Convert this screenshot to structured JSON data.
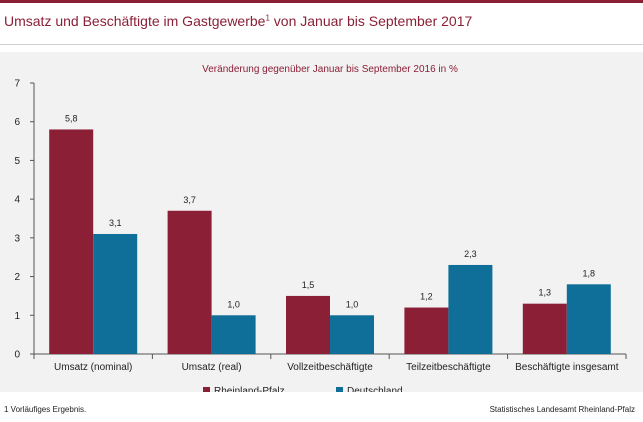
{
  "title_main": "Umsatz und Beschäftigte im Gastgewerbe",
  "title_sup": "1",
  "title_tail": " von Januar bis September 2017",
  "footnote": "1 Vorläufiges Ergebnis.",
  "source": "Statistisches Landesamt Rheinland-Pfalz",
  "colors": {
    "rlp": "#8b1f36",
    "de": "#0f6f98",
    "accent": "#8b1f36"
  },
  "chart_data": {
    "type": "bar",
    "subtitle": "Veränderung gegenüber Januar bis September 2016 in %",
    "categories": [
      "Umsatz (nominal)",
      "Umsatz (real)",
      "Vollzeitbeschäftigte",
      "Teilzeitbeschäftigte",
      "Beschäftigte insgesamt"
    ],
    "series": [
      {
        "name": "Rheinland-Pfalz",
        "values": [
          5.8,
          3.7,
          1.5,
          1.2,
          1.3
        ],
        "labels": [
          "5,8",
          "3,7",
          "1,5",
          "1,2",
          "1,3"
        ],
        "color": "#8b1f36"
      },
      {
        "name": "Deutschland",
        "values": [
          3.1,
          1.0,
          1.0,
          2.3,
          1.8
        ],
        "labels": [
          "3,1",
          "1,0",
          "1,0",
          "2,3",
          "1,8"
        ],
        "color": "#0f6f98"
      }
    ],
    "ylim": [
      0,
      7
    ],
    "yticks": [
      0,
      1,
      2,
      3,
      4,
      5,
      6,
      7
    ],
    "legend_position": "bottom-center",
    "grid": false
  }
}
